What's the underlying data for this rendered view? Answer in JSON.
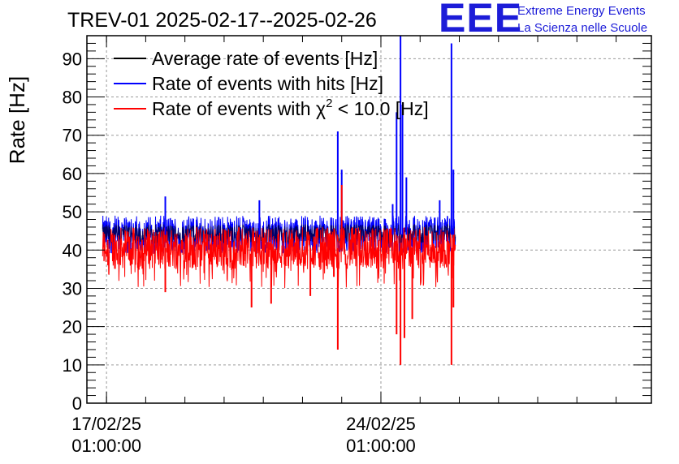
{
  "chart_data": {
    "type": "line",
    "title": "TREV-01 2025-02-17--2025-02-26",
    "ylabel": "Rate [Hz]",
    "xlabel": "",
    "ylim": [
      0,
      96
    ],
    "yticks": [
      0,
      10,
      20,
      30,
      40,
      50,
      60,
      70,
      80,
      90
    ],
    "xlim_days": [
      -0.5,
      13.9
    ],
    "xticks": [
      {
        "day": 0,
        "date": "17/02/25",
        "time": "01:00:00"
      },
      {
        "day": 7,
        "date": "24/02/25",
        "time": "01:00:00"
      }
    ],
    "grid": true,
    "legend_position": "top-left",
    "legend": [
      {
        "label": "Average rate of events [Hz]",
        "color": "#000000"
      },
      {
        "label": "Rate of events with hits [Hz]",
        "color": "#0000ff"
      },
      {
        "label_pre": "Rate of events with χ",
        "label_sup": "2",
        "label_post": " < 10.0 [Hz]",
        "color": "#ff0000"
      }
    ],
    "data_range_days": [
      -0.1,
      8.9
    ],
    "series": [
      {
        "name": "Average rate of events [Hz]",
        "color": "#000000",
        "baseline": 44
      },
      {
        "name": "Rate of events with hits [Hz]",
        "color": "#0000ff",
        "baseline": 44,
        "noise_low": 39,
        "noise_high": 49
      },
      {
        "name": "Rate of events with chi2 < 10.0 [Hz]",
        "color": "#ff0000",
        "baseline": 40.5,
        "noise_low": 35,
        "noise_high": 46
      }
    ],
    "spikes": [
      {
        "day": 1.5,
        "series": "hits",
        "value": 54,
        "kind": "up"
      },
      {
        "day": 1.5,
        "series": "chi2",
        "value": 29,
        "kind": "down"
      },
      {
        "day": 3.7,
        "series": "chi2",
        "value": 25,
        "kind": "down"
      },
      {
        "day": 3.9,
        "series": "hits",
        "value": 53,
        "kind": "up"
      },
      {
        "day": 4.2,
        "series": "chi2",
        "value": 26,
        "kind": "down"
      },
      {
        "day": 5.2,
        "series": "chi2",
        "value": 28,
        "kind": "down"
      },
      {
        "day": 5.8,
        "series": "chi2",
        "value": 33,
        "kind": "down"
      },
      {
        "day": 5.9,
        "series": "hits",
        "value": 71,
        "kind": "up"
      },
      {
        "day": 5.9,
        "series": "chi2",
        "value": 14,
        "kind": "down"
      },
      {
        "day": 6.0,
        "series": "hits",
        "value": 61,
        "kind": "up"
      },
      {
        "day": 6.0,
        "series": "chi2",
        "value": 57,
        "kind": "up"
      },
      {
        "day": 7.3,
        "series": "hits",
        "value": 52,
        "kind": "up"
      },
      {
        "day": 7.4,
        "series": "hits",
        "value": 76,
        "kind": "up"
      },
      {
        "day": 7.4,
        "series": "chi2",
        "value": 18,
        "kind": "down"
      },
      {
        "day": 7.5,
        "series": "hits",
        "value": 96,
        "kind": "up"
      },
      {
        "day": 7.5,
        "series": "chi2",
        "value": 10,
        "kind": "down"
      },
      {
        "day": 7.55,
        "series": "hits",
        "value": 78,
        "kind": "up"
      },
      {
        "day": 7.6,
        "series": "chi2",
        "value": 17,
        "kind": "down"
      },
      {
        "day": 7.65,
        "series": "hits",
        "value": 59,
        "kind": "up"
      },
      {
        "day": 7.8,
        "series": "chi2",
        "value": 22,
        "kind": "down"
      },
      {
        "day": 8.5,
        "series": "hits",
        "value": 53,
        "kind": "up"
      },
      {
        "day": 8.8,
        "series": "hits",
        "value": 94,
        "kind": "up"
      },
      {
        "day": 8.8,
        "series": "chi2",
        "value": 10,
        "kind": "down"
      },
      {
        "day": 8.85,
        "series": "hits",
        "value": 61,
        "kind": "up"
      },
      {
        "day": 8.85,
        "series": "chi2",
        "value": 25,
        "kind": "down"
      }
    ]
  },
  "logo": {
    "mark": "EEE",
    "line1": "Extreme Energy Events",
    "line2": "La Scienza nelle Scuole"
  }
}
